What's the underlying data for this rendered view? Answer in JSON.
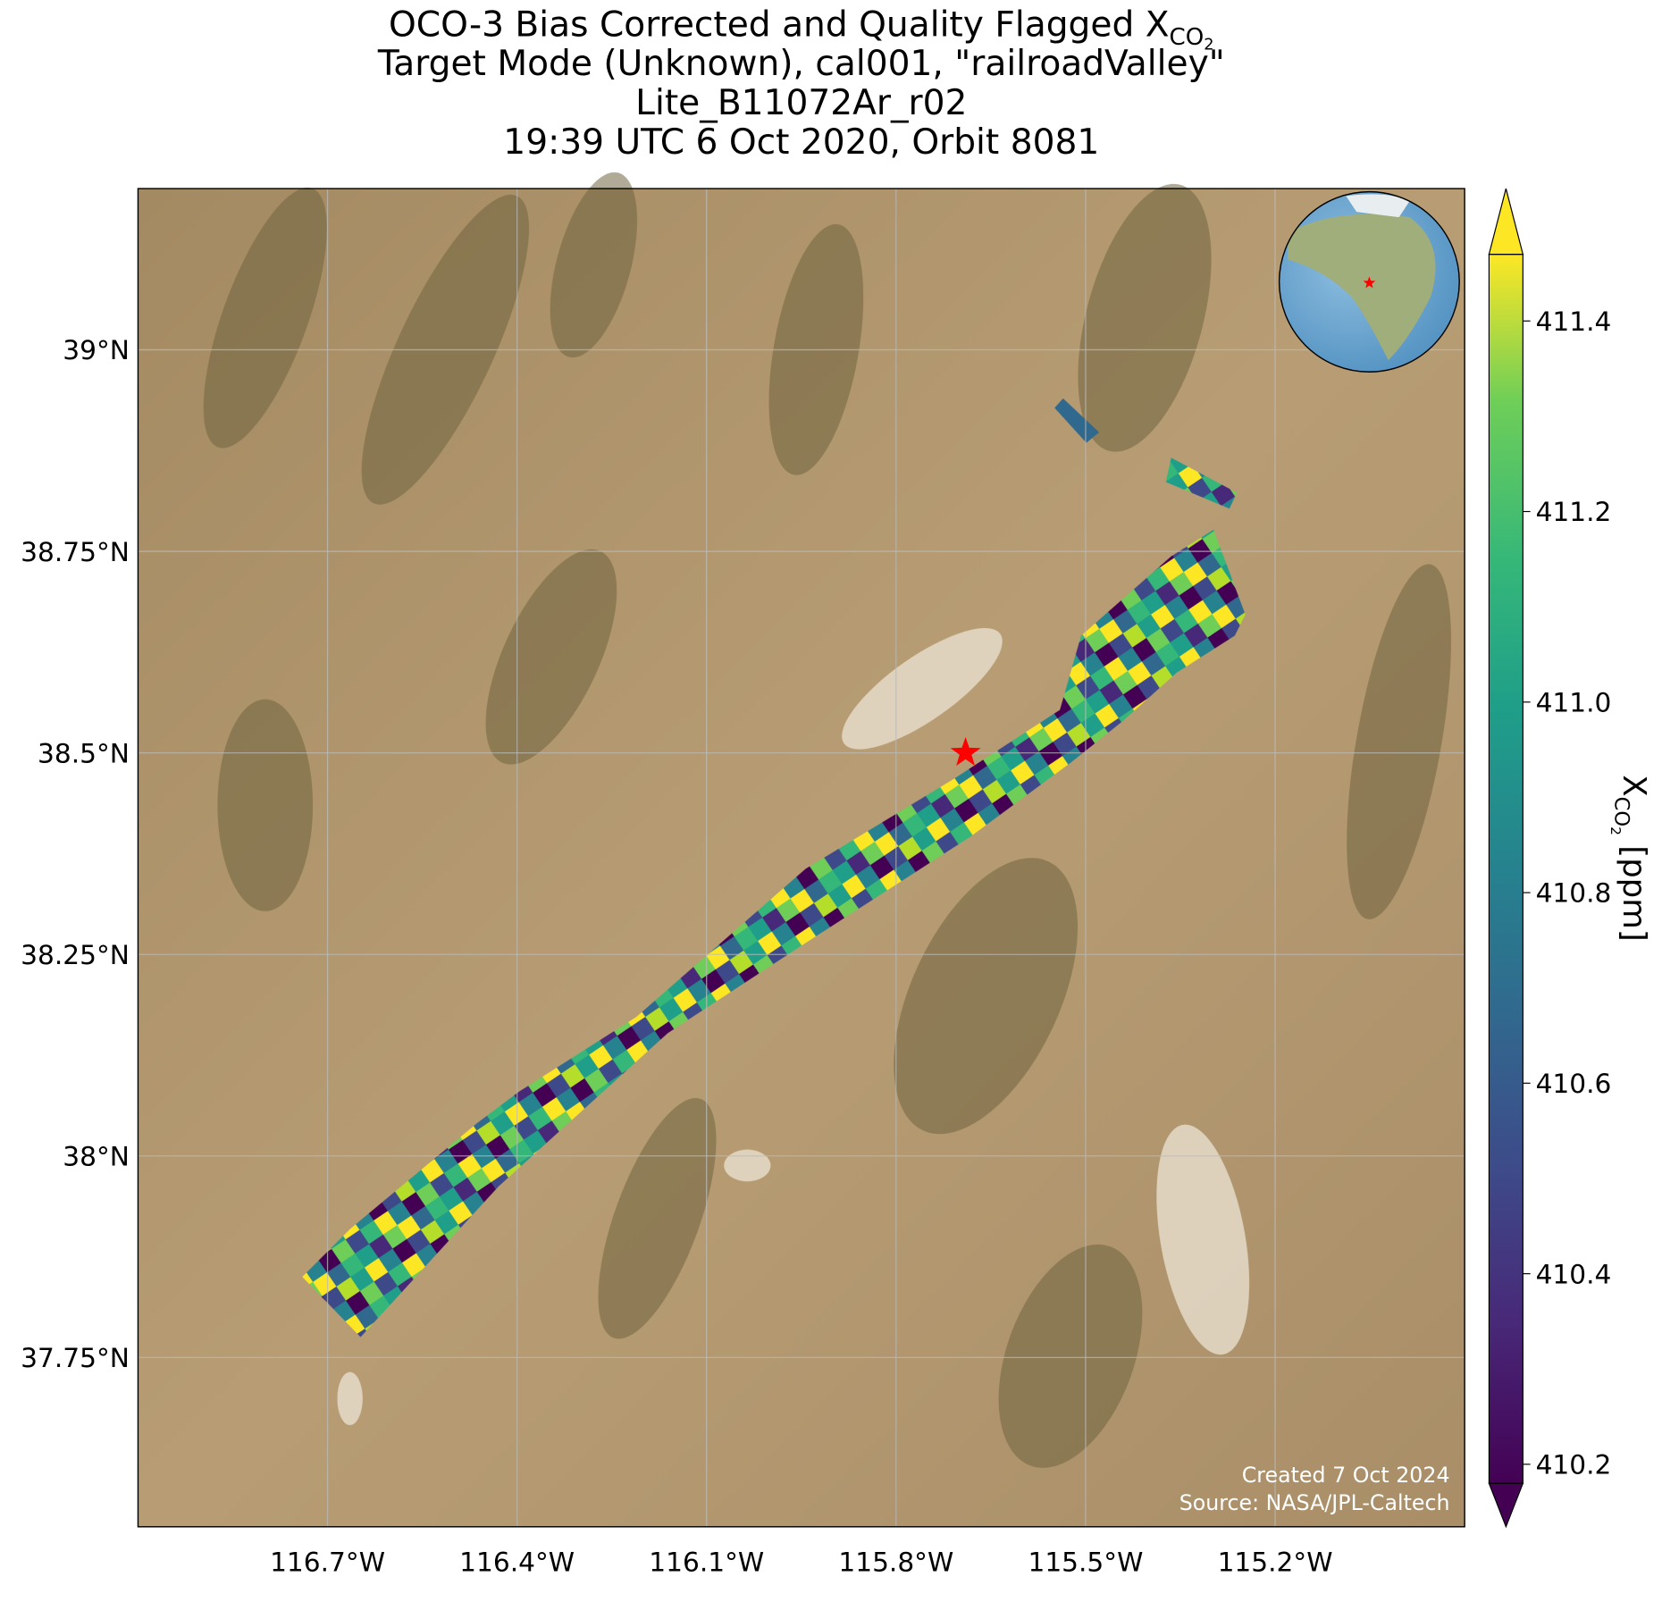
{
  "chart_data": {
    "type": "map",
    "title_lines": [
      {
        "text": "OCO-3 Bias Corrected and Quality Flagged X",
        "sub": "CO",
        "subsub": "2"
      },
      {
        "text": "Target Mode (Unknown), cal001, \"railroadValley\""
      },
      {
        "text": "Lite_B11072Ar_r02"
      },
      {
        "text": "19:39 UTC 6 Oct 2020, Orbit 8081"
      }
    ],
    "xlim": [
      -117.0,
      -114.9
    ],
    "ylim": [
      37.54,
      39.2
    ],
    "xticks": [
      {
        "value": -116.7,
        "label": "116.7°W"
      },
      {
        "value": -116.4,
        "label": "116.4°W"
      },
      {
        "value": -116.1,
        "label": "116.1°W"
      },
      {
        "value": -115.8,
        "label": "115.8°W"
      },
      {
        "value": -115.5,
        "label": "115.5°W"
      },
      {
        "value": -115.2,
        "label": "115.2°W"
      }
    ],
    "yticks": [
      {
        "value": 39,
        "label": "39°N"
      },
      {
        "value": 38.75,
        "label": "38.75°N"
      },
      {
        "value": 38.5,
        "label": "38.5°N"
      },
      {
        "value": 38.25,
        "label": "38.25°N"
      },
      {
        "value": 38,
        "label": "38°N"
      },
      {
        "value": 37.75,
        "label": "37.75°N"
      }
    ],
    "grid": true,
    "target": {
      "lon": -115.69,
      "lat": 38.5,
      "color": "#ff0000"
    },
    "colorbar": {
      "label": "X",
      "label_sub": "CO",
      "label_subsub": "2",
      "label_unit": " [ppm]",
      "clim": [
        410.18,
        411.47
      ],
      "ticks": [
        {
          "value": 410.2,
          "label": "410.2"
        },
        {
          "value": 410.4,
          "label": "410.4"
        },
        {
          "value": 410.6,
          "label": "410.6"
        },
        {
          "value": 410.8,
          "label": "410.8"
        },
        {
          "value": 411,
          "label": "411.0"
        },
        {
          "value": 411.2,
          "label": "411.2"
        },
        {
          "value": 411.4,
          "label": "411.4"
        }
      ]
    },
    "annotations": [
      "Created 7 Oct 2024",
      "Source: NASA/JPL-Caltech"
    ]
  }
}
